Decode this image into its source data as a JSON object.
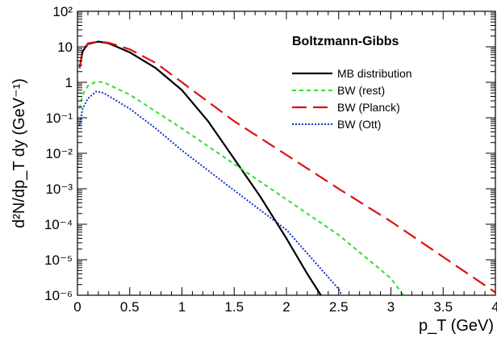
{
  "chart_data": {
    "type": "line",
    "legend_title": "Boltzmann-Gibbs",
    "xlabel": "p_T (GeV)",
    "ylabel": "d²N/dp_T dy (GeV⁻¹)",
    "xlim": [
      0,
      4
    ],
    "ylim": [
      1e-06,
      100
    ],
    "yscale": "log",
    "x_ticks": [
      "0",
      "0.5",
      "1",
      "1.5",
      "2",
      "2.5",
      "3",
      "3.5",
      "4"
    ],
    "y_ticks": [
      "10⁻⁶",
      "10⁻⁵",
      "10⁻⁴",
      "10⁻³",
      "10⁻²",
      "10⁻¹",
      "1",
      "10",
      "10²"
    ],
    "legend_position": "top-right",
    "series": [
      {
        "name": "MB distribution",
        "color": "#000000",
        "dash": "solid",
        "points": [
          [
            0.02,
            2.5
          ],
          [
            0.05,
            7.5
          ],
          [
            0.1,
            12.0
          ],
          [
            0.2,
            14.0
          ],
          [
            0.3,
            12.5
          ],
          [
            0.5,
            7.0
          ],
          [
            0.75,
            2.5
          ],
          [
            1.0,
            0.6
          ],
          [
            1.25,
            0.08
          ],
          [
            1.5,
            0.007
          ],
          [
            1.75,
            0.0006
          ],
          [
            2.0,
            4e-05
          ],
          [
            2.2,
            4e-06
          ],
          [
            2.33,
            1e-06
          ]
        ]
      },
      {
        "name": "BW (rest)",
        "color": "#33dd33",
        "dash": "short-dash",
        "points": [
          [
            0.02,
            0.18
          ],
          [
            0.05,
            0.45
          ],
          [
            0.1,
            0.8
          ],
          [
            0.18,
            1.05
          ],
          [
            0.25,
            1.0
          ],
          [
            0.5,
            0.45
          ],
          [
            0.75,
            0.15
          ],
          [
            1.0,
            0.05
          ],
          [
            1.5,
            0.005
          ],
          [
            2.0,
            0.0005
          ],
          [
            2.5,
            5e-05
          ],
          [
            3.0,
            3e-06
          ],
          [
            3.12,
            1e-06
          ]
        ]
      },
      {
        "name": "BW (Planck)",
        "color": "#dd1111",
        "dash": "long-dash",
        "points": [
          [
            0.02,
            2.5
          ],
          [
            0.05,
            8.0
          ],
          [
            0.1,
            12.5
          ],
          [
            0.2,
            14.0
          ],
          [
            0.3,
            13.0
          ],
          [
            0.5,
            8.5
          ],
          [
            0.75,
            3.5
          ],
          [
            1.0,
            1.0
          ],
          [
            1.5,
            0.08
          ],
          [
            2.0,
            0.009
          ],
          [
            2.5,
            0.001
          ],
          [
            3.0,
            0.00012
          ],
          [
            3.5,
            1.2e-05
          ],
          [
            4.0,
            1.2e-06
          ]
        ]
      },
      {
        "name": "BW (Ott)",
        "color": "#1133cc",
        "dash": "dotted",
        "points": [
          [
            0.02,
            0.06
          ],
          [
            0.05,
            0.18
          ],
          [
            0.1,
            0.35
          ],
          [
            0.18,
            0.55
          ],
          [
            0.25,
            0.5
          ],
          [
            0.5,
            0.18
          ],
          [
            0.75,
            0.05
          ],
          [
            1.0,
            0.012
          ],
          [
            1.5,
            0.0009
          ],
          [
            2.0,
            7e-05
          ],
          [
            2.5,
            1.5e-06
          ],
          [
            2.53,
            1e-06
          ]
        ]
      }
    ]
  }
}
